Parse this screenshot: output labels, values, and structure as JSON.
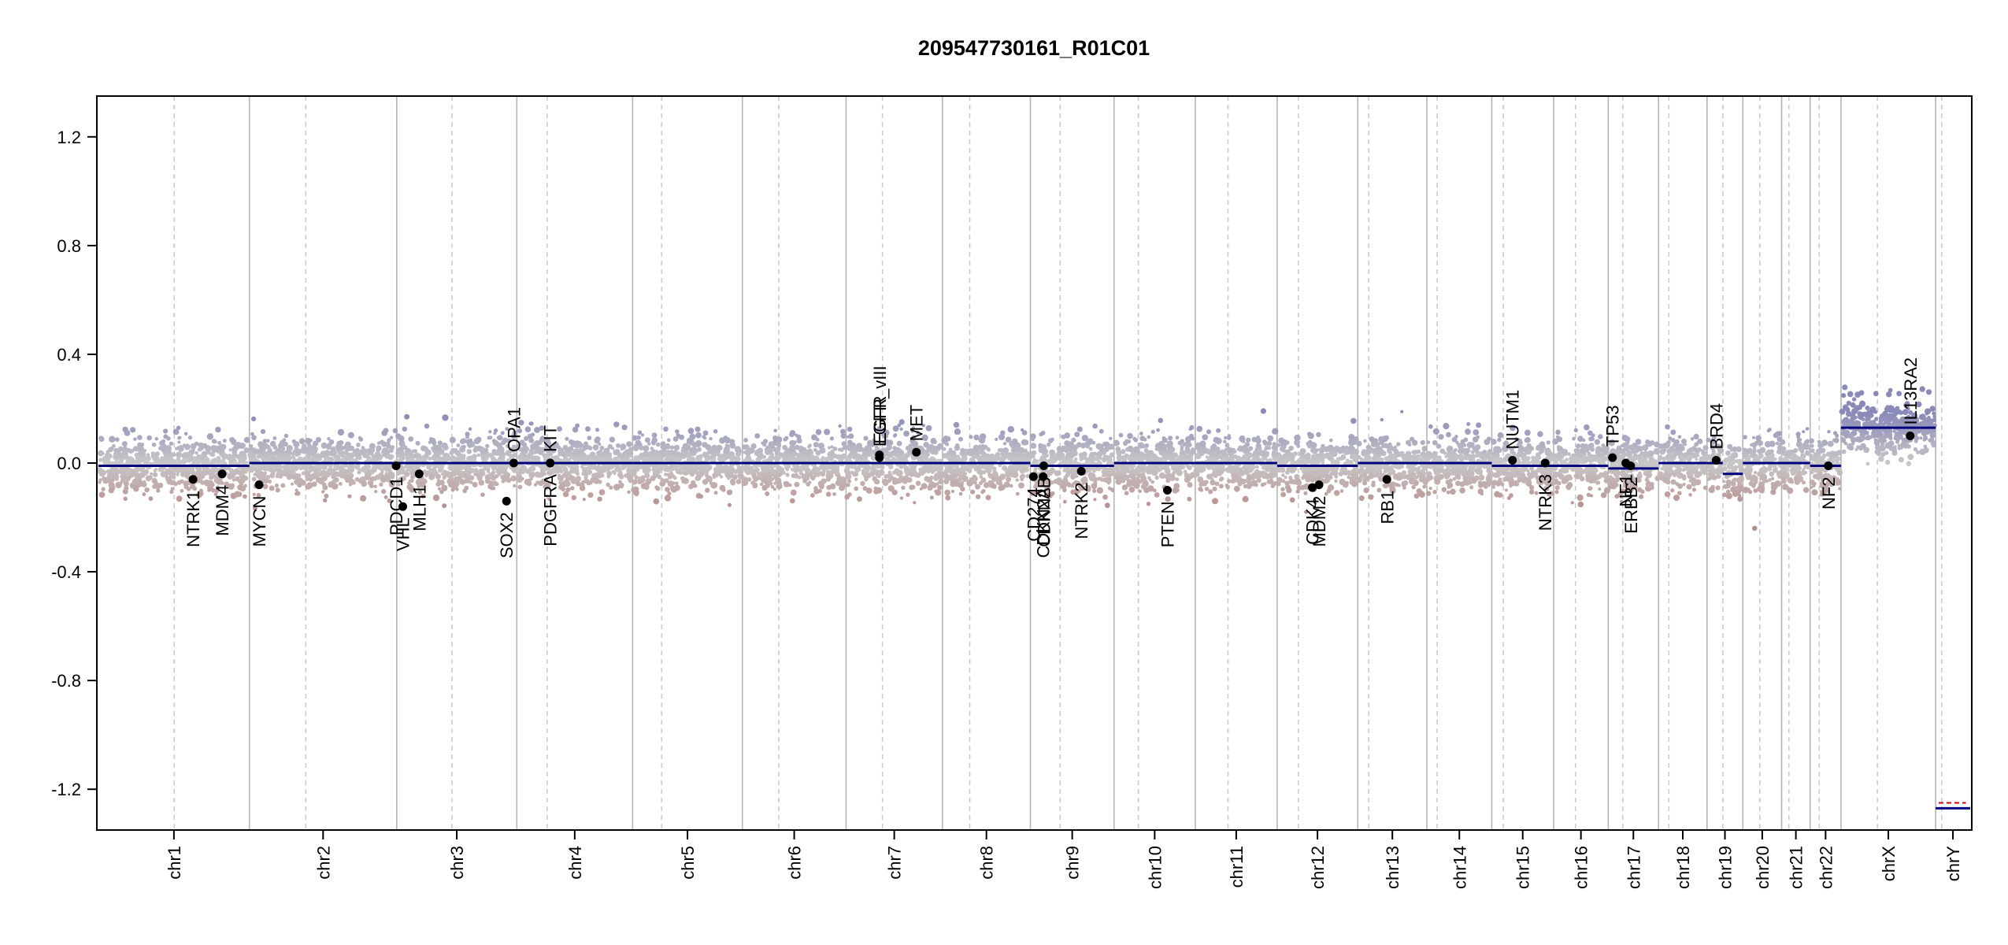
{
  "chart_data": {
    "type": "scatter",
    "title": "209547730161_R01C01",
    "xlabel": "",
    "ylabel": "",
    "ylim": [
      -1.35,
      1.35
    ],
    "yticks": [
      1.2,
      0.8,
      0.4,
      0.0,
      -0.4,
      -0.8,
      -1.2
    ],
    "yticks_text": [
      "1.2",
      "0.8",
      "0.4",
      "0.0",
      "-0.4",
      "-0.8",
      "-1.2"
    ],
    "colors": {
      "segment": "#00007f",
      "gain": "#8a8ab8",
      "loss": "#b88a8a",
      "neutral": "#c8c8c8",
      "gene_point": "#000000",
      "grid_solid": "#b4b4b4",
      "grid_dashed": "#cccccc"
    },
    "chromosomes": [
      {
        "name": "chr1",
        "label": "chr1",
        "length": 249,
        "centromere": 125
      },
      {
        "name": "chr2",
        "label": "chr2",
        "length": 243,
        "centromere": 93
      },
      {
        "name": "chr3",
        "label": "chr3",
        "length": 198,
        "centromere": 91
      },
      {
        "name": "chr4",
        "label": "chr4",
        "length": 191,
        "centromere": 50
      },
      {
        "name": "chr5",
        "label": "chr5",
        "length": 181,
        "centromere": 48
      },
      {
        "name": "chr6",
        "label": "chr6",
        "length": 171,
        "centromere": 60
      },
      {
        "name": "chr7",
        "label": "chr7",
        "length": 159,
        "centromere": 60
      },
      {
        "name": "chr8",
        "label": "chr8",
        "length": 145,
        "centromere": 45
      },
      {
        "name": "chr9",
        "label": "chr9",
        "length": 138,
        "centromere": 49
      },
      {
        "name": "chr10",
        "label": "chr10",
        "length": 134,
        "centromere": 40
      },
      {
        "name": "chr11",
        "label": "chr11",
        "length": 135,
        "centromere": 54
      },
      {
        "name": "chr12",
        "label": "chr12",
        "length": 133,
        "centromere": 35
      },
      {
        "name": "chr13",
        "label": "chr13",
        "length": 114,
        "centromere": 18
      },
      {
        "name": "chr14",
        "label": "chr14",
        "length": 107,
        "centromere": 17
      },
      {
        "name": "chr15",
        "label": "chr15",
        "length": 102,
        "centromere": 19
      },
      {
        "name": "chr16",
        "label": "chr16",
        "length": 90,
        "centromere": 36
      },
      {
        "name": "chr17",
        "label": "chr17",
        "length": 83,
        "centromere": 24
      },
      {
        "name": "chr18",
        "label": "chr18",
        "length": 80,
        "centromere": 17
      },
      {
        "name": "chr19",
        "label": "chr19",
        "length": 59,
        "centromere": 26
      },
      {
        "name": "chr20",
        "label": "chr20",
        "length": 64,
        "centromere": 28
      },
      {
        "name": "chr21",
        "label": "chr21",
        "length": 47,
        "centromere": 12
      },
      {
        "name": "chr22",
        "label": "chr22",
        "length": 51,
        "centromere": 15
      },
      {
        "name": "chrX",
        "label": "chrX",
        "length": 156,
        "centromere": 60
      },
      {
        "name": "chrY",
        "label": "chrY",
        "length": 57,
        "centromere": 10
      }
    ],
    "segments": [
      {
        "chr": "chr1",
        "start": 0,
        "end": 249,
        "value": -0.01
      },
      {
        "chr": "chr2",
        "start": 0,
        "end": 243,
        "value": 0.0
      },
      {
        "chr": "chr3",
        "start": 0,
        "end": 198,
        "value": 0.0
      },
      {
        "chr": "chr4",
        "start": 0,
        "end": 191,
        "value": 0.0
      },
      {
        "chr": "chr5",
        "start": 0,
        "end": 181,
        "value": 0.0
      },
      {
        "chr": "chr6",
        "start": 0,
        "end": 171,
        "value": 0.0
      },
      {
        "chr": "chr7",
        "start": 0,
        "end": 159,
        "value": 0.0
      },
      {
        "chr": "chr8",
        "start": 0,
        "end": 145,
        "value": 0.0
      },
      {
        "chr": "chr9",
        "start": 0,
        "end": 138,
        "value": -0.01
      },
      {
        "chr": "chr10",
        "start": 0,
        "end": 134,
        "value": 0.0
      },
      {
        "chr": "chr11",
        "start": 0,
        "end": 135,
        "value": 0.0
      },
      {
        "chr": "chr12",
        "start": 0,
        "end": 133,
        "value": -0.01
      },
      {
        "chr": "chr13",
        "start": 0,
        "end": 114,
        "value": 0.0
      },
      {
        "chr": "chr14",
        "start": 0,
        "end": 107,
        "value": 0.0
      },
      {
        "chr": "chr15",
        "start": 0,
        "end": 102,
        "value": -0.01
      },
      {
        "chr": "chr16",
        "start": 0,
        "end": 90,
        "value": -0.01
      },
      {
        "chr": "chr17",
        "start": 0,
        "end": 83,
        "value": -0.02
      },
      {
        "chr": "chr18",
        "start": 0,
        "end": 80,
        "value": 0.0
      },
      {
        "chr": "chr19",
        "start": 0,
        "end": 26,
        "value": 0.0
      },
      {
        "chr": "chr19",
        "start": 26,
        "end": 59,
        "value": -0.04
      },
      {
        "chr": "chr20",
        "start": 0,
        "end": 64,
        "value": 0.0
      },
      {
        "chr": "chr21",
        "start": 0,
        "end": 47,
        "value": 0.0
      },
      {
        "chr": "chr22",
        "start": 0,
        "end": 51,
        "value": -0.01
      },
      {
        "chr": "chrX",
        "start": 0,
        "end": 156,
        "value": 0.13
      },
      {
        "chr": "chrY",
        "start": 0,
        "end": 57,
        "value": -1.27
      }
    ],
    "genes": [
      {
        "name": "NTRK1",
        "chr": "chr1",
        "pos": 156,
        "value": -0.06,
        "label_side": "below"
      },
      {
        "name": "MDM4",
        "chr": "chr1",
        "pos": 204,
        "value": -0.04,
        "label_side": "below"
      },
      {
        "name": "MYCN",
        "chr": "chr2",
        "pos": 16,
        "value": -0.08,
        "label_side": "below"
      },
      {
        "name": "PDCD1",
        "chr": "chr2",
        "pos": 242,
        "value": -0.01,
        "label_side": "below"
      },
      {
        "name": "VHL",
        "chr": "chr3",
        "pos": 10,
        "value": -0.16,
        "label_side": "below"
      },
      {
        "name": "MLH1",
        "chr": "chr3",
        "pos": 37,
        "value": -0.04,
        "label_side": "below"
      },
      {
        "name": "SOX2",
        "chr": "chr3",
        "pos": 181,
        "value": -0.14,
        "label_side": "below"
      },
      {
        "name": "OPA1",
        "chr": "chr3",
        "pos": 193,
        "value": 0.0,
        "label_side": "above"
      },
      {
        "name": "PDGFRA",
        "chr": "chr4",
        "pos": 55,
        "value": 0.0,
        "label_side": "below"
      },
      {
        "name": "KIT",
        "chr": "chr4",
        "pos": 55,
        "value": 0.0,
        "label_side": "above"
      },
      {
        "name": "EGFR",
        "chr": "chr7",
        "pos": 55,
        "value": 0.03,
        "label_side": "above"
      },
      {
        "name": "EGFR_vIII",
        "chr": "chr7",
        "pos": 55,
        "value": 0.02,
        "label_side": "above"
      },
      {
        "name": "MET",
        "chr": "chr7",
        "pos": 116,
        "value": 0.04,
        "label_side": "above"
      },
      {
        "name": "CD274",
        "chr": "chr9",
        "pos": 5,
        "value": -0.05,
        "label_side": "below"
      },
      {
        "name": "CDKN2A",
        "chr": "chr9",
        "pos": 21,
        "value": -0.05,
        "label_side": "below"
      },
      {
        "name": "CDKN2B",
        "chr": "chr9",
        "pos": 22,
        "value": -0.01,
        "label_side": "below"
      },
      {
        "name": "NTRK2",
        "chr": "chr9",
        "pos": 84,
        "value": -0.03,
        "label_side": "below"
      },
      {
        "name": "PTEN",
        "chr": "chr10",
        "pos": 88,
        "value": -0.1,
        "label_side": "below"
      },
      {
        "name": "CDK4",
        "chr": "chr12",
        "pos": 58,
        "value": -0.09,
        "label_side": "below"
      },
      {
        "name": "MDM2",
        "chr": "chr12",
        "pos": 69,
        "value": -0.08,
        "label_side": "below"
      },
      {
        "name": "RB1",
        "chr": "chr13",
        "pos": 48,
        "value": -0.06,
        "label_side": "below"
      },
      {
        "name": "NUTM1",
        "chr": "chr15",
        "pos": 34,
        "value": 0.01,
        "label_side": "above"
      },
      {
        "name": "NTRK3",
        "chr": "chr15",
        "pos": 88,
        "value": 0.0,
        "label_side": "below"
      },
      {
        "name": "TP53",
        "chr": "chr17",
        "pos": 7,
        "value": 0.02,
        "label_side": "above"
      },
      {
        "name": "NF1",
        "chr": "chr17",
        "pos": 29,
        "value": 0.0,
        "label_side": "below"
      },
      {
        "name": "ERBB2",
        "chr": "chr17",
        "pos": 37,
        "value": -0.01,
        "label_side": "below"
      },
      {
        "name": "BRD4",
        "chr": "chr19",
        "pos": 15,
        "value": 0.01,
        "label_side": "above"
      },
      {
        "name": "NF2",
        "chr": "chr22",
        "pos": 30,
        "value": -0.01,
        "label_side": "below"
      },
      {
        "name": "IL13RA2",
        "chr": "chrX",
        "pos": 114,
        "value": 0.1,
        "label_side": "above"
      }
    ]
  }
}
